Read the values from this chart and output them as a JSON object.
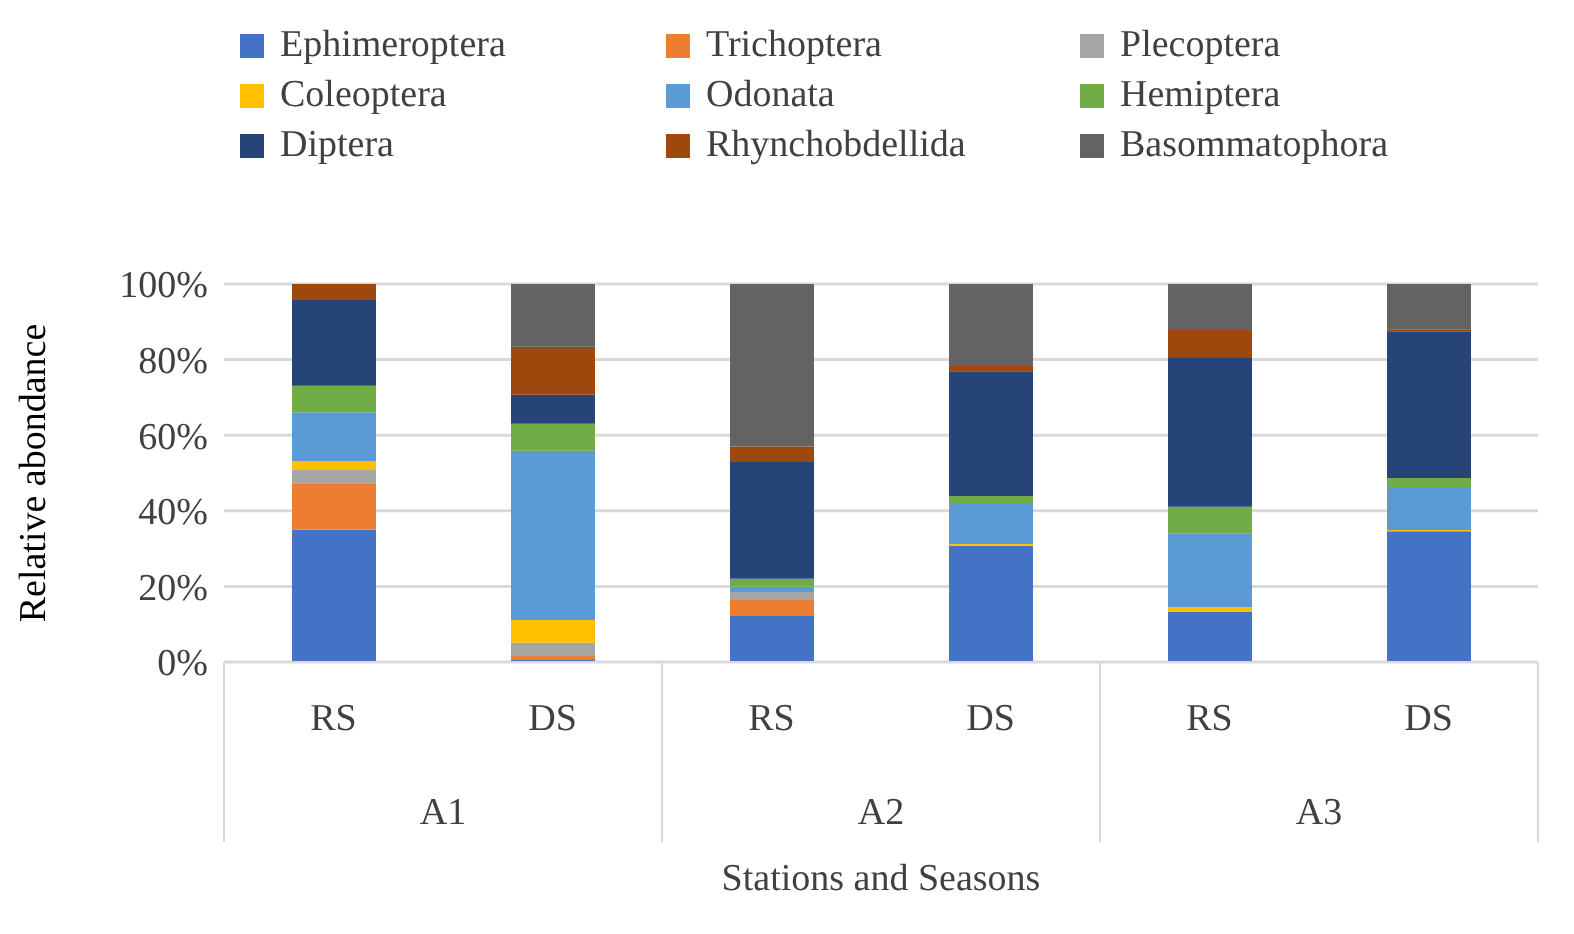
{
  "chart_data": {
    "type": "bar",
    "stacked": true,
    "xlabel": "Stations and Seasons",
    "ylabel": "Relative abondance",
    "categories": [
      "RS",
      "DS",
      "RS",
      "DS",
      "RS",
      "DS"
    ],
    "annotations": [
      "A1",
      "A2",
      "A3"
    ],
    "series": [
      {
        "name": "Ephimeroptera",
        "color": "#4472c4",
        "values": [
          35,
          0.5,
          12.2,
          30.7,
          13.2,
          34.6
        ]
      },
      {
        "name": "Trichoptera",
        "color": "#ed7d31",
        "values": [
          12.3,
          1.1,
          4.2,
          0,
          0,
          0
        ]
      },
      {
        "name": "Plecoptera",
        "color": "#a5a5a5",
        "values": [
          3.5,
          3.5,
          2.1,
          0,
          0,
          0
        ]
      },
      {
        "name": "Coleoptera",
        "color": "#ffc000",
        "values": [
          2.3,
          6,
          0,
          0.5,
          1.3,
          0.3
        ]
      },
      {
        "name": "Odonata",
        "color": "#5b9bd5",
        "values": [
          13,
          44.8,
          1.4,
          10.6,
          19.4,
          11.1
        ]
      },
      {
        "name": "Hemiptera",
        "color": "#70ad47",
        "values": [
          7,
          7.1,
          2.1,
          2.1,
          7.2,
          2.7
        ]
      },
      {
        "name": "Diptera",
        "color": "#264478",
        "values": [
          22.7,
          7.7,
          30.9,
          33,
          39.3,
          38.8
        ]
      },
      {
        "name": "Rhynchobdellida",
        "color": "#9e480e",
        "values": [
          4.2,
          12.7,
          4.1,
          1.4,
          7.4,
          0.5
        ]
      },
      {
        "name": "Basommatophora",
        "color": "#636363",
        "values": [
          0,
          16.6,
          43,
          21.7,
          12.2,
          12
        ]
      }
    ],
    "ylim": [
      0,
      100
    ],
    "yticks": [
      {
        "value": 0,
        "label": "0%"
      },
      {
        "value": 20,
        "label": "20%"
      },
      {
        "value": 40,
        "label": "40%"
      },
      {
        "value": 60,
        "label": "60%"
      },
      {
        "value": 80,
        "label": "80%"
      },
      {
        "value": 100,
        "label": "100%"
      }
    ],
    "grid": "y",
    "legend": "top"
  }
}
